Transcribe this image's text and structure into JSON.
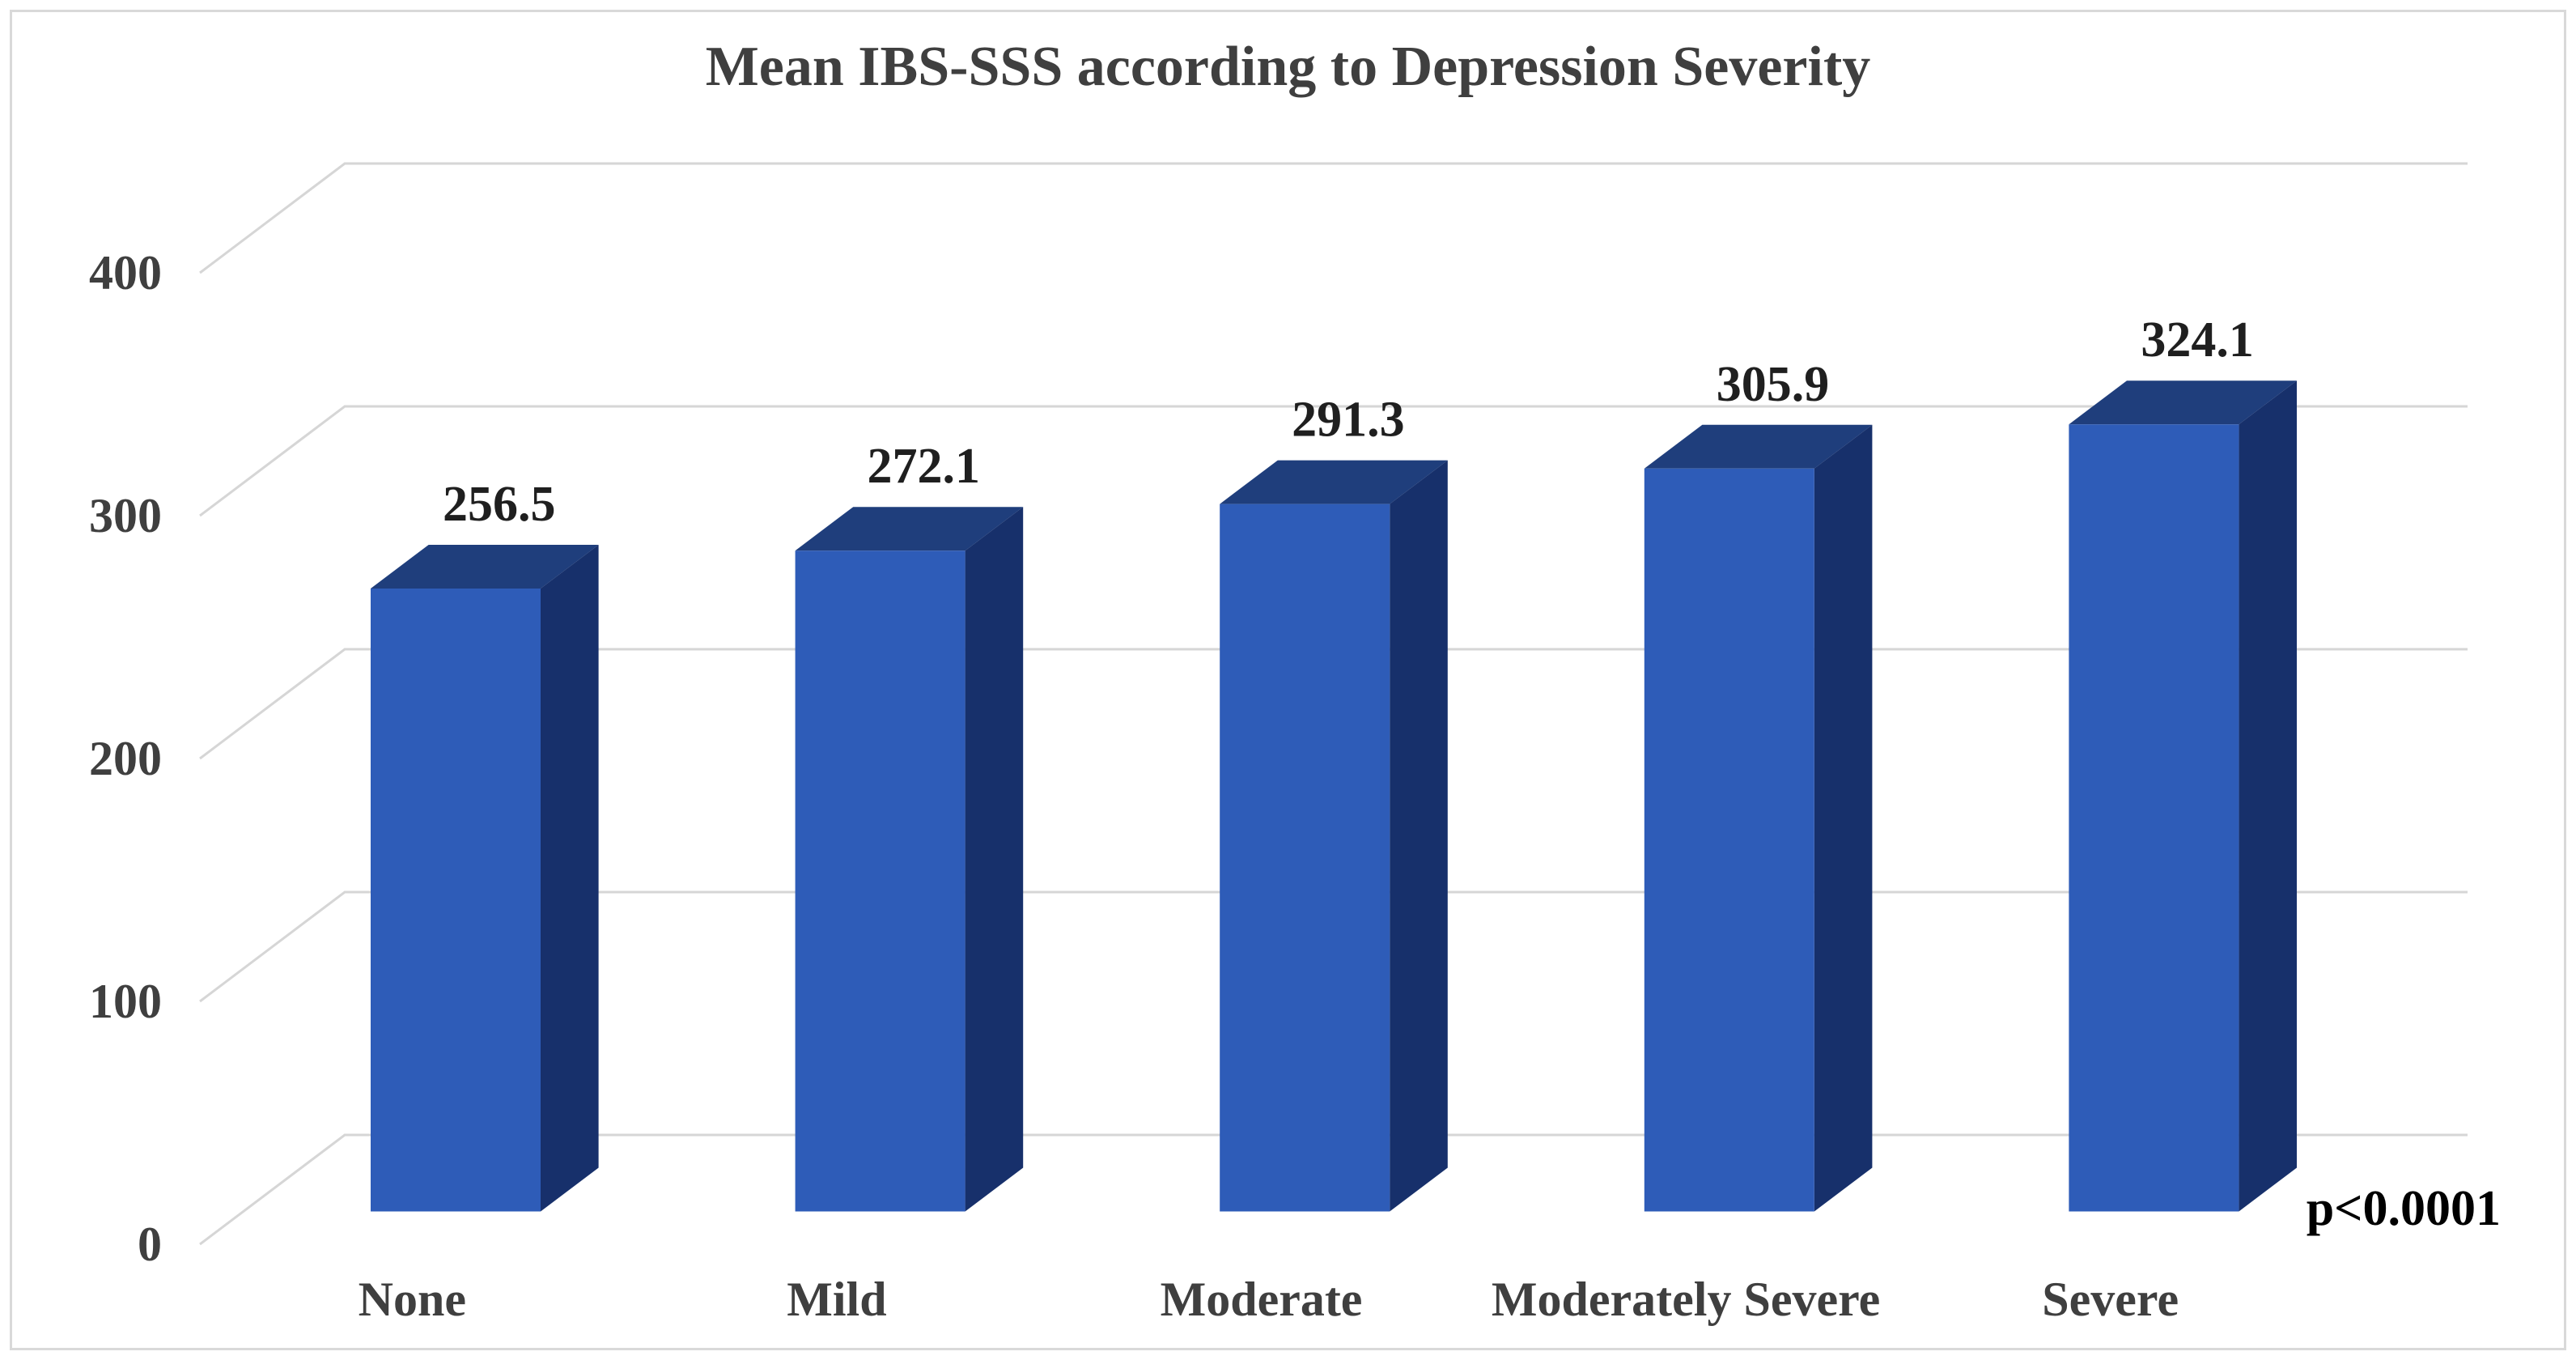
{
  "figure": {
    "title": "Mean IBS-SSS according to Depression Severity",
    "annotation": "p<0.0001"
  },
  "chart_data": {
    "type": "bar",
    "variant": "3d-column",
    "title": "Mean IBS-SSS according to Depression Severity",
    "categories": [
      "None",
      "Mild",
      "Moderate",
      "Moderately Severe",
      "Severe"
    ],
    "values": [
      256.5,
      272.1,
      291.3,
      305.9,
      324.1
    ],
    "value_labels": [
      "256.5",
      "272.1",
      "291.3",
      "305.9",
      "324.1"
    ],
    "xlabel": "",
    "ylabel": "",
    "yticks": [
      0,
      100,
      200,
      300,
      400
    ],
    "ylim": [
      0,
      400
    ],
    "grid": true,
    "legend": "none",
    "annotation": "p<0.0001",
    "colors": {
      "bar_front": "#2E5CB8",
      "bar_top": "#1F3E7C",
      "bar_side": "#17306B",
      "gridline": "#D6D6D6",
      "figure_border": "#D9D9D9",
      "axis_text": "#3F3F3F",
      "value_label_text": "#1F1F1F",
      "annotation_text": "#000000"
    }
  }
}
